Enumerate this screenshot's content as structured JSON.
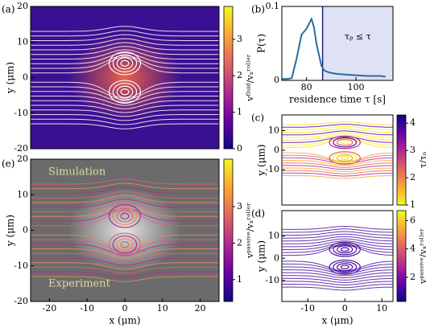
{
  "chart_data": [
    {
      "type": "streamplot",
      "panel_label": "(a)",
      "ylabel": "y (μm)",
      "xlim": [
        -25,
        25
      ],
      "ylim": [
        -20,
        20
      ],
      "yticks": [
        -20,
        -10,
        0,
        10,
        20
      ],
      "color": "#3b0f92",
      "glow": "#ff6a3d",
      "line_color": [
        "#ffffff"
      ],
      "clim": [
        0,
        3.9
      ],
      "cticks": [
        0,
        1,
        2,
        3
      ],
      "clabel": "vᶠˡᵘⁱᵈ/vₓʳᵒˡˡᵉʳ",
      "colormap": [
        "#0d0887",
        "#6a00a8",
        "#b12a90",
        "#e16462",
        "#fca636",
        "#f0f921"
      ]
    },
    {
      "type": "line",
      "panel_label": "(b)",
      "ylabel": "P(τ)",
      "xlabel": "residence time τ [s]",
      "xlim": [
        70,
        115
      ],
      "ylim": [
        0,
        0.1
      ],
      "xticks": [
        80,
        100
      ],
      "yticks": [
        0,
        0.1
      ],
      "x": [
        70,
        72,
        74,
        76,
        78,
        80,
        82,
        83,
        84,
        85,
        86,
        87,
        88,
        90,
        92,
        95,
        100,
        105,
        110,
        112
      ],
      "values": [
        0.002,
        0.002,
        0.003,
        0.03,
        0.062,
        0.07,
        0.083,
        0.072,
        0.05,
        0.035,
        0.02,
        0.014,
        0.012,
        0.01,
        0.009,
        0.008,
        0.007,
        0.006,
        0.006,
        0.005
      ],
      "color": "#2b6c9c",
      "threshold": 86.5,
      "threshold_color": "#1a237e",
      "shade": "#dfe1f5",
      "annotation": "τₚ ≤ τ"
    },
    {
      "type": "streamplot",
      "panel_label": "(c)",
      "ylabel": "y (μm)",
      "xlim": [
        -17,
        13
      ],
      "ylim": [
        -28,
        18
      ],
      "yticks": [
        -10,
        0,
        10
      ],
      "color": "#ffffff",
      "line_color": [
        "#f7e225",
        "#fca636",
        "#f0f921",
        "#e16462",
        "#6a00a8",
        "#b12a90"
      ],
      "clim": [
        1,
        4.3
      ],
      "cticks": [
        1,
        2,
        3,
        4
      ],
      "clabel": "τ/τₚ",
      "colormap": [
        "#f0f921",
        "#fca636",
        "#e16462",
        "#b12a90",
        "#6a00a8",
        "#0d0887"
      ]
    },
    {
      "type": "streamplot",
      "panel_label": "(d)",
      "ylabel": "y (μm)",
      "xlabel": "x (μm)",
      "xlim": [
        -17,
        13
      ],
      "ylim": [
        -19.5,
        21.5
      ],
      "xticks": [
        -10,
        0,
        10
      ],
      "yticks": [
        -10,
        0,
        10
      ],
      "color": "#ffffff",
      "line_color": [
        "#4b0fa0"
      ],
      "clim": [
        0.3,
        6.7
      ],
      "cticks": [
        2,
        4,
        6
      ],
      "clabel": "vᵖᵃˢˢⁱᵛᵉ/vₓʳᵒˡˡᵉʳ",
      "colormap": [
        "#0d0887",
        "#6a00a8",
        "#b12a90",
        "#e16462",
        "#fca636",
        "#f0f921"
      ]
    },
    {
      "type": "streamplot",
      "panel_label": "(e)",
      "ylabel": "y (μm)",
      "xlabel": "x (μm)",
      "xlim": [
        -25,
        25
      ],
      "ylim": [
        -20,
        20
      ],
      "xticks": [
        -20,
        -10,
        0,
        10,
        20
      ],
      "yticks": [
        -20,
        -10,
        0,
        10,
        20
      ],
      "color": "#6b6b6b",
      "glow": "#f2f2f2",
      "line_color": [
        "#e0607a",
        "#f08a5d",
        "#b12a90"
      ],
      "clim": [
        0.4,
        4.3
      ],
      "cticks": [
        1,
        2,
        3
      ],
      "clabel": "vᵖᵃˢˢⁱᵛᵉ/vₓʳᵒˡˡᵉʳ",
      "colormap": [
        "#0d0887",
        "#6a00a8",
        "#b12a90",
        "#e16462",
        "#fca636",
        "#f0f921"
      ],
      "annotations": [
        "Simulation",
        "Experiment"
      ]
    }
  ]
}
